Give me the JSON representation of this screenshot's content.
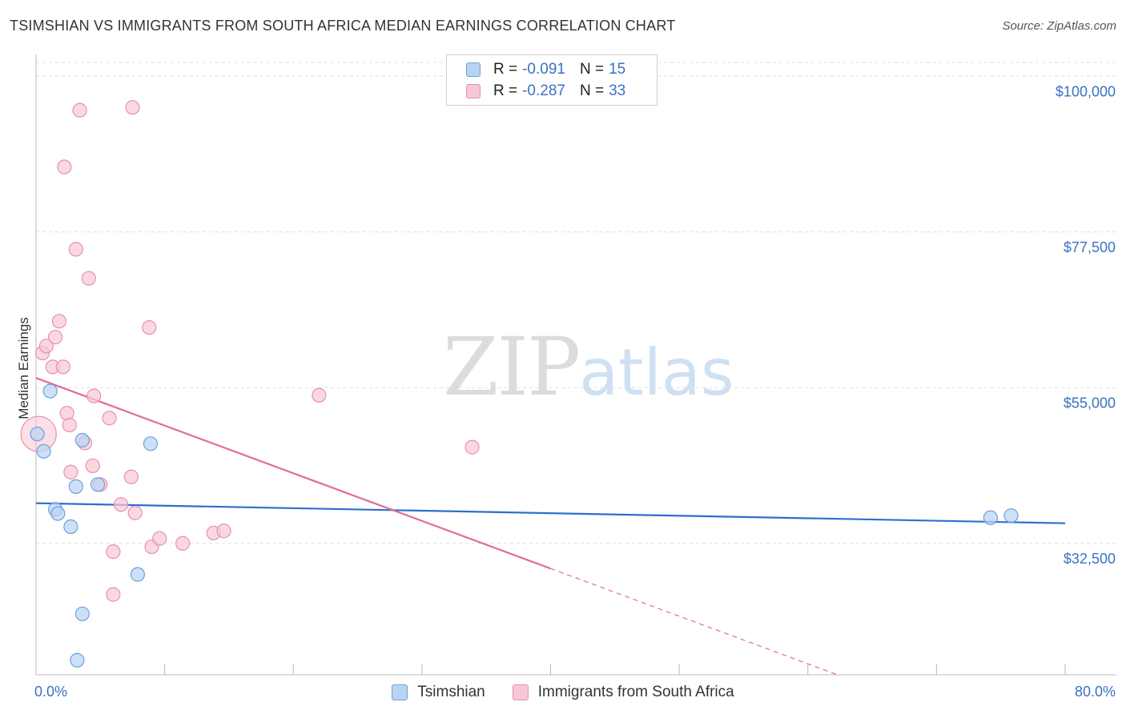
{
  "header": {
    "title": "TSIMSHIAN VS IMMIGRANTS FROM SOUTH AFRICA MEDIAN EARNINGS CORRELATION CHART",
    "source": "Source: ZipAtlas.com"
  },
  "watermark": {
    "zip": "ZIP",
    "atlas": "atlas"
  },
  "legend": {
    "rows": [
      {
        "r_label": "R =",
        "r_value": "-0.091",
        "n_label": "N =",
        "n_value": "15"
      },
      {
        "r_label": "R =",
        "r_value": "-0.287",
        "n_label": "N =",
        "n_value": "33"
      }
    ]
  },
  "bottom_legend": {
    "series1": "Tsimshian",
    "series2": "Immigrants from South Africa"
  },
  "colors": {
    "series1_fill": "#b9d3f3",
    "series1_stroke": "#6d9fdc",
    "series1_line": "#2e6fcc",
    "series2_fill": "#f8c7d5",
    "series2_stroke": "#e890ab",
    "series2_line": "#e06b95",
    "grid": "#dddddd",
    "tick_text": "#3a72c4"
  },
  "chart_data": {
    "type": "scatter",
    "title": "TSIMSHIAN VS IMMIGRANTS FROM SOUTH AFRICA MEDIAN EARNINGS CORRELATION CHART",
    "xlabel": "",
    "ylabel": "Median Earnings",
    "xlim": [
      0,
      80
    ],
    "ylim": [
      13500,
      102000
    ],
    "x_tick_labels": [
      "0.0%",
      "80.0%"
    ],
    "y_ticks": [
      {
        "value": 32500,
        "label": "$32,500"
      },
      {
        "value": 55000,
        "label": "$55,000"
      },
      {
        "value": 77500,
        "label": "$77,500"
      },
      {
        "value": 100000,
        "label": "$100,000"
      }
    ],
    "series": [
      {
        "name": "Tsimshian",
        "r": -0.091,
        "n": 15,
        "points": [
          [
            0.1,
            48300
          ],
          [
            0.6,
            45800
          ],
          [
            1.1,
            54500
          ],
          [
            1.5,
            37400
          ],
          [
            1.7,
            36800
          ],
          [
            2.7,
            34900
          ],
          [
            3.1,
            40700
          ],
          [
            3.2,
            15600
          ],
          [
            3.6,
            22300
          ],
          [
            3.6,
            47400
          ],
          [
            4.8,
            41000
          ],
          [
            7.9,
            28000
          ],
          [
            8.9,
            46900
          ],
          [
            74.2,
            36200
          ],
          [
            75.8,
            36500
          ]
        ],
        "trend": {
          "x": [
            0,
            80
          ],
          "y": [
            38300,
            35400
          ],
          "dashed_from_x": null
        }
      },
      {
        "name": "Immigrants from South Africa",
        "r": -0.287,
        "n": 33,
        "points": [
          [
            0.2,
            48300
          ],
          [
            0.5,
            60000
          ],
          [
            0.8,
            61000
          ],
          [
            1.3,
            58000
          ],
          [
            1.5,
            62300
          ],
          [
            1.8,
            64600
          ],
          [
            2.1,
            58000
          ],
          [
            2.2,
            86900
          ],
          [
            2.4,
            51300
          ],
          [
            2.6,
            49600
          ],
          [
            2.7,
            42800
          ],
          [
            3.1,
            75000
          ],
          [
            3.4,
            95100
          ],
          [
            3.8,
            47000
          ],
          [
            4.1,
            70800
          ],
          [
            4.4,
            43700
          ],
          [
            4.5,
            53800
          ],
          [
            5.0,
            41000
          ],
          [
            5.7,
            50600
          ],
          [
            6.0,
            31300
          ],
          [
            6.0,
            25100
          ],
          [
            6.6,
            38100
          ],
          [
            7.4,
            42100
          ],
          [
            7.7,
            36900
          ],
          [
            8.8,
            63700
          ],
          [
            9.0,
            32000
          ],
          [
            9.6,
            33200
          ],
          [
            11.4,
            32500
          ],
          [
            13.8,
            34000
          ],
          [
            14.6,
            34300
          ],
          [
            7.5,
            95500
          ],
          [
            22.0,
            53900
          ],
          [
            33.9,
            46400
          ]
        ],
        "trend": {
          "x": [
            0,
            62.3
          ],
          "y": [
            56400,
            13500
          ],
          "dashed_from_x": 40
        }
      }
    ]
  }
}
